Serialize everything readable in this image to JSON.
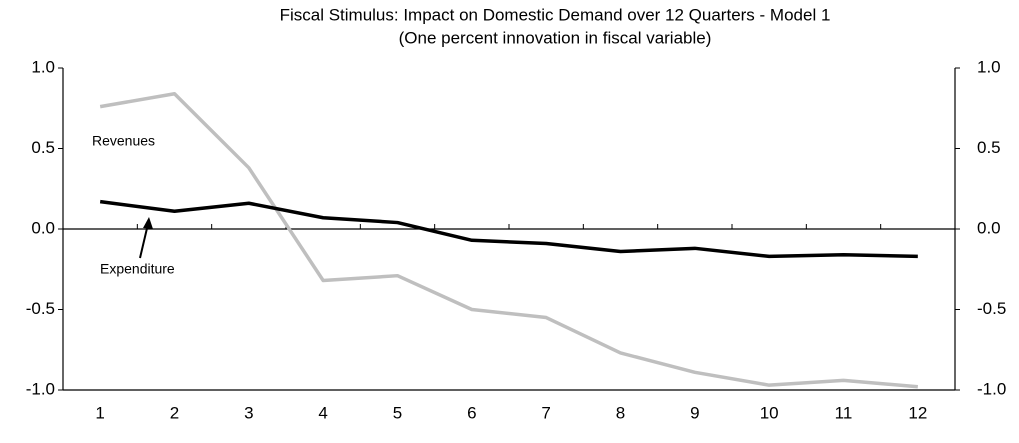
{
  "chart_data": {
    "type": "line",
    "title": "Fiscal Stimulus: Impact on Domestic Demand over 12 Quarters - Model 1",
    "subtitle": "(One percent innovation in fiscal variable)",
    "categories": [
      "1",
      "2",
      "3",
      "4",
      "5",
      "6",
      "7",
      "8",
      "9",
      "10",
      "11",
      "12"
    ],
    "series": [
      {
        "name": "Expenditure",
        "color": "#000000",
        "values": [
          0.17,
          0.11,
          0.16,
          0.07,
          0.04,
          -0.07,
          -0.09,
          -0.14,
          -0.12,
          -0.17,
          -0.16,
          -0.17
        ]
      },
      {
        "name": "Revenues",
        "color": "#bfbfbf",
        "values": [
          0.76,
          0.84,
          0.38,
          -0.32,
          -0.29,
          -0.5,
          -0.55,
          -0.77,
          -0.89,
          -0.97,
          -0.94,
          -0.98
        ]
      }
    ],
    "ylim": [
      -1,
      1
    ],
    "yticks": [
      {
        "value": 1,
        "label": "1.0"
      },
      {
        "value": 0.5,
        "label": "0.5"
      },
      {
        "value": 0,
        "label": "0.0"
      },
      {
        "value": -0.5,
        "label": "-0.5"
      },
      {
        "value": -1,
        "label": "-1.0"
      }
    ],
    "y2lim": [
      -1,
      1
    ],
    "y2ticks": [
      {
        "value": 1,
        "label": "1.0"
      },
      {
        "value": 0.5,
        "label": "0.5"
      },
      {
        "value": 0,
        "label": "0.0"
      },
      {
        "value": -0.5,
        "label": "-0.5"
      },
      {
        "value": -1,
        "label": "-1.0"
      }
    ],
    "grid": false
  }
}
